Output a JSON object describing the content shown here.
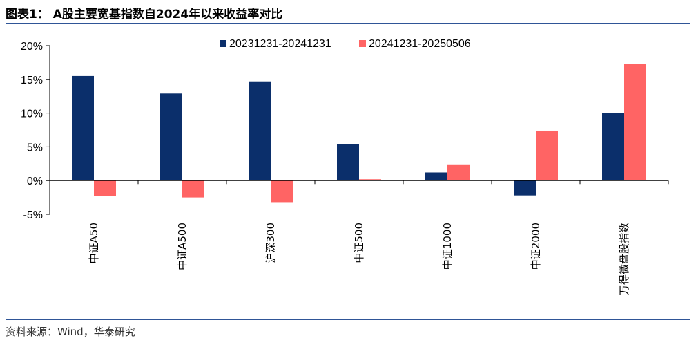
{
  "title": "图表1： A股主要宽基指数自2024年以来收益率对比",
  "source": "资料来源：Wind，华泰研究",
  "colors": {
    "rule": "#2f5597"
  },
  "chart_data": {
    "type": "bar",
    "categories": [
      "中证A50",
      "中证A500",
      "沪深300",
      "中证500",
      "中证1000",
      "中证2000",
      "万得微盘股指数"
    ],
    "series": [
      {
        "name": "20231231-20241231",
        "color": "#0b2f6b",
        "values": [
          15.5,
          12.9,
          14.7,
          5.4,
          1.2,
          -2.2,
          10.0
        ]
      },
      {
        "name": "20241231-20250506",
        "color": "#ff6464",
        "values": [
          -2.3,
          -2.5,
          -3.2,
          0.2,
          2.4,
          7.4,
          17.3
        ]
      }
    ],
    "y_ticks": [
      "20%",
      "15%",
      "10%",
      "5%",
      "0%",
      "-5%"
    ],
    "ylim": [
      -5,
      20
    ],
    "xlabel": "",
    "ylabel": "",
    "legend_position": "top-center",
    "grid": false
  }
}
